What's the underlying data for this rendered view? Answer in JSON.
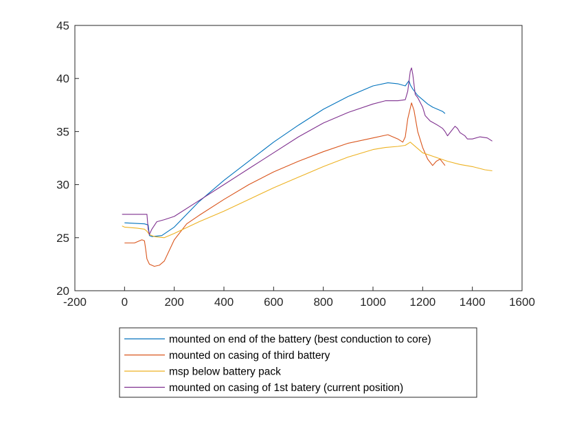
{
  "chart_data": {
    "type": "line",
    "title": "",
    "xlabel": "",
    "ylabel": "",
    "xlim": [
      -200,
      1600
    ],
    "ylim": [
      20,
      45
    ],
    "xticks": [
      -200,
      0,
      200,
      400,
      600,
      800,
      1000,
      1200,
      1400,
      1600
    ],
    "yticks": [
      20,
      25,
      30,
      35,
      40,
      45
    ],
    "grid": false,
    "legend_position": "bottom-outside",
    "series": [
      {
        "name": "mounted on end of the battery (best conduction to core)",
        "color": "#0072bd",
        "x": [
          0,
          80,
          95,
          100,
          110,
          150,
          200,
          300,
          400,
          500,
          600,
          700,
          800,
          900,
          1000,
          1060,
          1100,
          1130,
          1145,
          1150,
          1160,
          1180,
          1200,
          1220,
          1240,
          1260,
          1280,
          1290
        ],
        "y": [
          26.4,
          26.3,
          26.2,
          25.2,
          25.1,
          25.2,
          26.0,
          28.4,
          30.4,
          32.2,
          34.0,
          35.6,
          37.1,
          38.3,
          39.3,
          39.6,
          39.5,
          39.3,
          39.8,
          39.4,
          39.0,
          38.4,
          38.0,
          37.6,
          37.3,
          37.1,
          36.9,
          36.7
        ]
      },
      {
        "name": "mounted on casing of third battery",
        "color": "#d95319",
        "x": [
          0,
          40,
          70,
          80,
          85,
          90,
          100,
          120,
          140,
          160,
          200,
          250,
          300,
          400,
          500,
          600,
          700,
          800,
          900,
          1000,
          1060,
          1080,
          1100,
          1120,
          1130,
          1140,
          1155,
          1165,
          1180,
          1200,
          1220,
          1240,
          1255,
          1270,
          1280,
          1290
        ],
        "y": [
          24.5,
          24.5,
          24.8,
          24.7,
          23.9,
          23.0,
          22.5,
          22.3,
          22.4,
          22.8,
          24.8,
          26.3,
          27.1,
          28.6,
          30.0,
          31.2,
          32.2,
          33.1,
          33.9,
          34.4,
          34.7,
          34.5,
          34.3,
          34.0,
          34.5,
          36.2,
          37.7,
          37.0,
          35.0,
          33.5,
          32.4,
          31.8,
          32.2,
          32.4,
          32.1,
          31.8
        ]
      },
      {
        "name": "msp below battery pack",
        "color": "#edb120",
        "x": [
          -10,
          0,
          50,
          80,
          90,
          100,
          120,
          160,
          200,
          300,
          400,
          500,
          600,
          700,
          800,
          900,
          1000,
          1050,
          1100,
          1130,
          1150,
          1160,
          1200,
          1250,
          1300,
          1350,
          1400,
          1450,
          1480
        ],
        "y": [
          26.1,
          26.0,
          25.9,
          25.8,
          25.6,
          25.3,
          25.1,
          25.0,
          25.4,
          26.5,
          27.5,
          28.6,
          29.7,
          30.7,
          31.7,
          32.6,
          33.3,
          33.5,
          33.6,
          33.7,
          34.0,
          33.8,
          33.0,
          32.6,
          32.2,
          31.9,
          31.7,
          31.4,
          31.3
        ]
      },
      {
        "name": "mounted on casing of 1st batery (current position)",
        "color": "#7e2f8e",
        "x": [
          -10,
          0,
          50,
          90,
          95,
          100,
          110,
          130,
          160,
          200,
          300,
          400,
          500,
          600,
          700,
          800,
          900,
          1000,
          1050,
          1100,
          1130,
          1140,
          1150,
          1155,
          1160,
          1170,
          1180,
          1200,
          1210,
          1230,
          1260,
          1280,
          1290,
          1300,
          1330,
          1340,
          1350,
          1370,
          1380,
          1400,
          1430,
          1460,
          1480
        ],
        "y": [
          27.2,
          27.2,
          27.2,
          27.2,
          25.8,
          25.3,
          25.8,
          26.5,
          26.7,
          27.0,
          28.5,
          30.0,
          31.5,
          33.0,
          34.5,
          35.8,
          36.8,
          37.6,
          37.9,
          37.9,
          38.0,
          38.8,
          40.7,
          41.0,
          40.4,
          38.5,
          38.2,
          37.3,
          36.5,
          36.0,
          35.6,
          35.3,
          35.0,
          34.6,
          35.5,
          35.3,
          34.9,
          34.6,
          34.3,
          34.3,
          34.5,
          34.4,
          34.1
        ]
      }
    ]
  }
}
